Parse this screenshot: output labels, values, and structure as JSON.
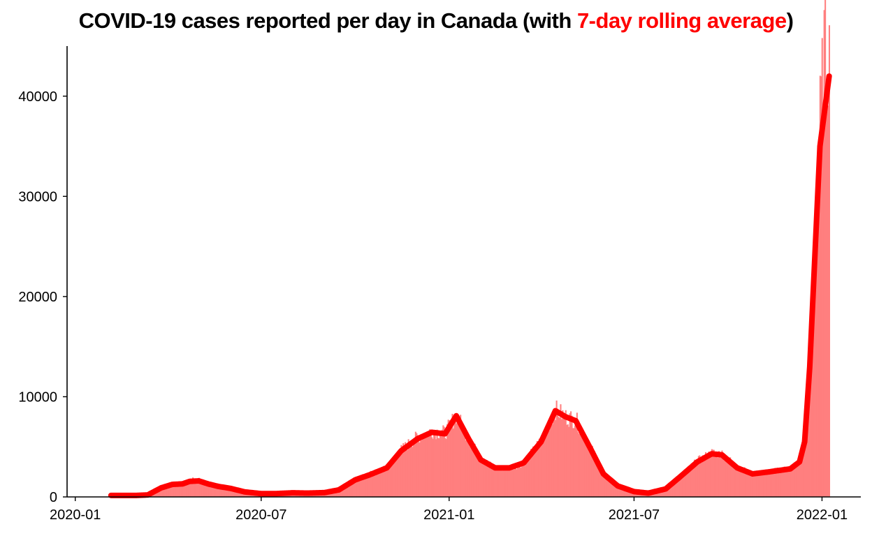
{
  "chart_data": {
    "type": "bar",
    "title": {
      "prefix": "COVID-19 cases reported per day in Canada (with ",
      "highlight": "7-day rolling average",
      "suffix": ")"
    },
    "xlabel": "",
    "ylabel": "",
    "x_axis": {
      "type": "date",
      "range": [
        "2019-12-24",
        "2022-02-08"
      ],
      "tick_labels": [
        "2020-01",
        "2020-07",
        "2021-01",
        "2021-07",
        "2022-01"
      ],
      "tick_dates": [
        "2020-01-01",
        "2020-07-01",
        "2021-01-01",
        "2021-07-01",
        "2022-01-01"
      ]
    },
    "y_axis": {
      "range": [
        0,
        45000
      ],
      "tick_labels": [
        "0",
        "10000",
        "20000",
        "30000",
        "40000"
      ],
      "tick_values": [
        0,
        10000,
        20000,
        30000,
        40000
      ]
    },
    "grid": false,
    "colors": {
      "bars": "#ff7f7f",
      "rolling_average": "#ff0000",
      "axis": "#000000"
    },
    "series": [
      {
        "name": "Cases reported per day",
        "kind": "bar",
        "points": [
          [
            "2020-01-27",
            0
          ],
          [
            "2020-02-15",
            0
          ],
          [
            "2020-03-01",
            10
          ],
          [
            "2020-03-10",
            50
          ],
          [
            "2020-03-18",
            250
          ],
          [
            "2020-03-25",
            800
          ],
          [
            "2020-04-02",
            1300
          ],
          [
            "2020-04-10",
            1250
          ],
          [
            "2020-04-18",
            1500
          ],
          [
            "2020-04-25",
            1750
          ],
          [
            "2020-05-01",
            1700
          ],
          [
            "2020-05-10",
            1300
          ],
          [
            "2020-05-20",
            1100
          ],
          [
            "2020-06-01",
            800
          ],
          [
            "2020-06-15",
            450
          ],
          [
            "2020-07-01",
            320
          ],
          [
            "2020-07-15",
            350
          ],
          [
            "2020-08-01",
            400
          ],
          [
            "2020-08-15",
            380
          ],
          [
            "2020-09-01",
            450
          ],
          [
            "2020-09-15",
            750
          ],
          [
            "2020-10-01",
            1800
          ],
          [
            "2020-10-15",
            2300
          ],
          [
            "2020-11-01",
            2900
          ],
          [
            "2020-11-15",
            4700
          ],
          [
            "2020-12-01",
            6000
          ],
          [
            "2020-12-15",
            6600
          ],
          [
            "2020-12-28",
            6400
          ],
          [
            "2021-01-08",
            8200
          ],
          [
            "2021-01-20",
            5800
          ],
          [
            "2021-02-01",
            3800
          ],
          [
            "2021-02-15",
            2900
          ],
          [
            "2021-03-01",
            2900
          ],
          [
            "2021-03-15",
            3400
          ],
          [
            "2021-04-01",
            5600
          ],
          [
            "2021-04-15",
            8700
          ],
          [
            "2021-04-25",
            8000
          ],
          [
            "2021-05-05",
            7700
          ],
          [
            "2021-05-20",
            4800
          ],
          [
            "2021-06-01",
            2400
          ],
          [
            "2021-06-15",
            1100
          ],
          [
            "2021-07-01",
            550
          ],
          [
            "2021-07-15",
            400
          ],
          [
            "2021-08-01",
            800
          ],
          [
            "2021-08-15",
            2100
          ],
          [
            "2021-09-01",
            3600
          ],
          [
            "2021-09-15",
            4400
          ],
          [
            "2021-09-25",
            4300
          ],
          [
            "2021-10-10",
            3000
          ],
          [
            "2021-10-25",
            2300
          ],
          [
            "2021-11-10",
            2500
          ],
          [
            "2021-12-01",
            2900
          ],
          [
            "2021-12-10",
            3500
          ],
          [
            "2021-12-15",
            6000
          ],
          [
            "2021-12-20",
            15000
          ],
          [
            "2021-12-25",
            26000
          ],
          [
            "2021-12-30",
            38000
          ],
          [
            "2022-01-03",
            45000
          ],
          [
            "2022-01-08",
            44000
          ]
        ]
      },
      {
        "name": "7-day rolling average",
        "kind": "line",
        "points": [
          [
            "2020-02-05",
            150
          ],
          [
            "2020-03-01",
            150
          ],
          [
            "2020-03-12",
            200
          ],
          [
            "2020-03-25",
            900
          ],
          [
            "2020-04-05",
            1250
          ],
          [
            "2020-04-15",
            1300
          ],
          [
            "2020-04-22",
            1550
          ],
          [
            "2020-05-01",
            1600
          ],
          [
            "2020-05-10",
            1300
          ],
          [
            "2020-05-20",
            1050
          ],
          [
            "2020-06-01",
            850
          ],
          [
            "2020-06-15",
            500
          ],
          [
            "2020-07-01",
            330
          ],
          [
            "2020-07-15",
            330
          ],
          [
            "2020-08-01",
            410
          ],
          [
            "2020-08-15",
            380
          ],
          [
            "2020-09-01",
            430
          ],
          [
            "2020-09-15",
            700
          ],
          [
            "2020-10-01",
            1700
          ],
          [
            "2020-10-15",
            2200
          ],
          [
            "2020-11-01",
            2900
          ],
          [
            "2020-11-15",
            4600
          ],
          [
            "2020-12-01",
            5800
          ],
          [
            "2020-12-15",
            6450
          ],
          [
            "2020-12-28",
            6300
          ],
          [
            "2021-01-08",
            8100
          ],
          [
            "2021-01-20",
            5800
          ],
          [
            "2021-02-01",
            3700
          ],
          [
            "2021-02-15",
            2900
          ],
          [
            "2021-03-01",
            2900
          ],
          [
            "2021-03-15",
            3400
          ],
          [
            "2021-04-01",
            5500
          ],
          [
            "2021-04-15",
            8600
          ],
          [
            "2021-04-25",
            8000
          ],
          [
            "2021-05-05",
            7600
          ],
          [
            "2021-05-20",
            4700
          ],
          [
            "2021-06-01",
            2300
          ],
          [
            "2021-06-15",
            1100
          ],
          [
            "2021-07-01",
            530
          ],
          [
            "2021-07-15",
            380
          ],
          [
            "2021-08-01",
            800
          ],
          [
            "2021-08-15",
            2000
          ],
          [
            "2021-09-01",
            3500
          ],
          [
            "2021-09-15",
            4300
          ],
          [
            "2021-09-25",
            4200
          ],
          [
            "2021-10-10",
            2900
          ],
          [
            "2021-10-25",
            2300
          ],
          [
            "2021-11-10",
            2500
          ],
          [
            "2021-12-01",
            2800
          ],
          [
            "2021-12-10",
            3500
          ],
          [
            "2021-12-15",
            5500
          ],
          [
            "2021-12-20",
            13000
          ],
          [
            "2021-12-25",
            24000
          ],
          [
            "2021-12-30",
            35000
          ],
          [
            "2022-01-08",
            42000
          ]
        ]
      }
    ]
  }
}
